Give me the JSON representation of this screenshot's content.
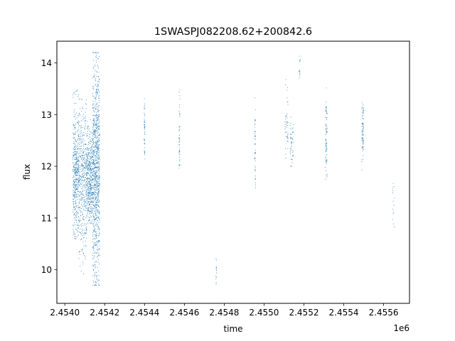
{
  "chart_data": {
    "type": "scatter",
    "title": "1SWASPJ082208.62+200842.6",
    "xlabel": "time",
    "ylabel": "flux",
    "x_offset_label": "1e6",
    "xlim": [
      2453960,
      2455730
    ],
    "ylim": [
      9.35,
      14.42
    ],
    "x_ticks": [
      2454000,
      2454200,
      2454400,
      2454600,
      2454800,
      2455000,
      2455200,
      2455400,
      2455600
    ],
    "x_tick_labels": [
      "2.4540",
      "2.4542",
      "2.4544",
      "2.4546",
      "2.4548",
      "2.4550",
      "2.4552",
      "2.4554",
      "2.4556"
    ],
    "y_ticks": [
      10,
      11,
      12,
      13,
      14
    ],
    "y_tick_labels": [
      "10",
      "11",
      "12",
      "13",
      "14"
    ],
    "grid": false,
    "marker_color": "#1f77b4",
    "series": [
      {
        "values_desc": "",
        "clusters": [
          {
            "t": [
              2454040,
              2454070
            ],
            "f_center": 11.85,
            "f_min": 10.6,
            "f_max": 13.5,
            "density": "high"
          },
          {
            "t": [
              2454070,
              2454110
            ],
            "f_center": 11.8,
            "f_min": 9.9,
            "f_max": 13.3,
            "density": "high"
          },
          {
            "t": [
              2454110,
              2454140
            ],
            "f_center": 11.8,
            "f_min": 10.9,
            "f_max": 12.9,
            "density": "high"
          },
          {
            "t": [
              2454140,
              2454175
            ],
            "f_center": 11.95,
            "f_min": 9.7,
            "f_max": 14.2,
            "density": "very_high"
          },
          {
            "t": [
              2454398,
              2454402
            ],
            "f_center": 12.75,
            "f_min": 12.1,
            "f_max": 13.4,
            "density": "low"
          },
          {
            "t": [
              2454573,
              2454578
            ],
            "f_center": 12.6,
            "f_min": 11.75,
            "f_max": 13.5,
            "density": "low"
          },
          {
            "t": [
              2454758,
              2454762
            ],
            "f_center": 10.0,
            "f_min": 9.55,
            "f_max": 10.45,
            "density": "very_low"
          },
          {
            "t": [
              2454953,
              2454958
            ],
            "f_center": 12.4,
            "f_min": 11.5,
            "f_max": 13.65,
            "density": "low"
          },
          {
            "t": [
              2455105,
              2455120
            ],
            "f_center": 12.8,
            "f_min": 12.1,
            "f_max": 13.75,
            "density": "low"
          },
          {
            "t": [
              2455130,
              2455148
            ],
            "f_center": 12.5,
            "f_min": 12.0,
            "f_max": 13.1,
            "density": "low"
          },
          {
            "t": [
              2455175,
              2455182
            ],
            "f_center": 13.9,
            "f_min": 13.5,
            "f_max": 14.2,
            "density": "very_low"
          },
          {
            "t": [
              2455308,
              2455317
            ],
            "f_center": 12.6,
            "f_min": 11.75,
            "f_max": 13.9,
            "density": "medium"
          },
          {
            "t": [
              2455490,
              2455500
            ],
            "f_center": 12.6,
            "f_min": 11.85,
            "f_max": 13.35,
            "density": "medium"
          },
          {
            "t": [
              2455645,
              2455655
            ],
            "f_center": 11.1,
            "f_min": 10.4,
            "f_max": 11.8,
            "density": "very_low"
          }
        ]
      }
    ]
  }
}
